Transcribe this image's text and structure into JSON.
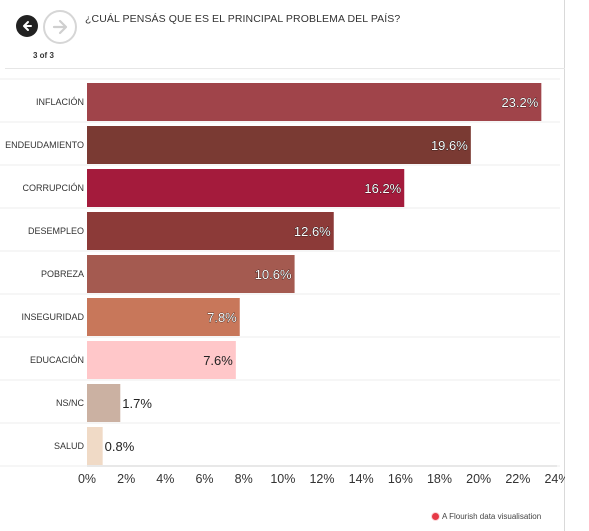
{
  "header": {
    "question": "¿CUÁL PENSÁS QUE ES EL PRINCIPAL PROBLEMA DEL PAÍS?",
    "step_label": "3 of 3"
  },
  "footer": {
    "credit": "A Flourish data visualisation"
  },
  "chart_data": {
    "type": "bar",
    "orientation": "horizontal",
    "title": "¿CUÁL PENSÁS QUE ES EL PRINCIPAL PROBLEMA DEL PAÍS?",
    "categories": [
      "INFLACIÓN",
      "ENDEUDAMIENTO",
      "CORRUPCIÓN",
      "DESEMPLEO",
      "POBREZA",
      "INSEGURIDAD",
      "EDUCACIÓN",
      "NS/NC",
      "SALUD"
    ],
    "values": [
      23.2,
      19.6,
      16.2,
      12.6,
      10.6,
      7.8,
      7.6,
      1.7,
      0.8
    ],
    "value_labels": [
      "23.2%",
      "19.6%",
      "16.2%",
      "12.6%",
      "10.6%",
      "7.8%",
      "7.6%",
      "1.7%",
      "0.8%"
    ],
    "colors": [
      "#a0444a",
      "#7a3a33",
      "#a41b3c",
      "#8c3a38",
      "#a45a50",
      "#c8775a",
      "#ffc7c9",
      "#cbb1a2",
      "#f0dac6"
    ],
    "xlim": [
      0,
      24
    ],
    "x_ticks": [
      0,
      2,
      4,
      6,
      8,
      10,
      12,
      14,
      16,
      18,
      20,
      22,
      24
    ],
    "x_tick_labels": [
      "0%",
      "2%",
      "4%",
      "6%",
      "8%",
      "10%",
      "12%",
      "14%",
      "16%",
      "18%",
      "20%",
      "22%",
      "24%"
    ],
    "grid": "horizontal-rows",
    "legend": "none"
  }
}
